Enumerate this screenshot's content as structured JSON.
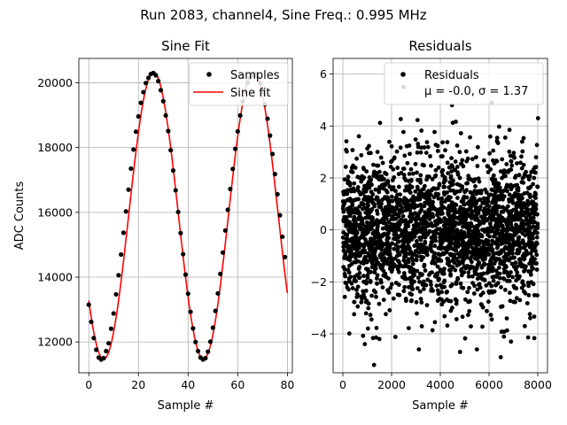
{
  "figure": {
    "suptitle": "Run 2083, channel4, Sine Freq.: 0.995 MHz"
  },
  "chart_data": [
    {
      "type": "scatter",
      "title": "Sine Fit",
      "xlabel": "Sample #",
      "ylabel": "ADC Counts",
      "xlim": [
        -4,
        82
      ],
      "ylim": [
        11050,
        20750
      ],
      "xticks": [
        0,
        20,
        40,
        60,
        80
      ],
      "yticks": [
        12000,
        14000,
        16000,
        18000,
        20000
      ],
      "grid": true,
      "legend_placement": "upper-right",
      "fit": {
        "offset": 15900,
        "amplitude": 4430,
        "period_samples": 40.2,
        "peak_sample": 26.1
      },
      "series": [
        {
          "name": "Samples",
          "kind": "points",
          "color": "#000000",
          "x": [
            0,
            1,
            2,
            3,
            4,
            5,
            6,
            7,
            8,
            9,
            10,
            11,
            12,
            13,
            14,
            15,
            16,
            17,
            18,
            19,
            20,
            21,
            22,
            23,
            24,
            25,
            26,
            27,
            28,
            29,
            30,
            31,
            32,
            33,
            34,
            35,
            36,
            37,
            38,
            39,
            40,
            41,
            42,
            43,
            44,
            45,
            46,
            47,
            48,
            49,
            50,
            51,
            52,
            53,
            54,
            55,
            56,
            57,
            58,
            59,
            60,
            61,
            62,
            63,
            64,
            65,
            66,
            67,
            68,
            69,
            70,
            71,
            72,
            73,
            74,
            75,
            76,
            77,
            78,
            79
          ],
          "y": [
            13150,
            12620,
            12120,
            11760,
            11520,
            11460,
            11500,
            11720,
            11960,
            12410,
            12880,
            13470,
            14060,
            14700,
            15370,
            16030,
            16700,
            17350,
            17940,
            18490,
            18960,
            19380,
            19710,
            19990,
            20150,
            20270,
            20300,
            20230,
            20050,
            19770,
            19430,
            18990,
            18510,
            17920,
            17290,
            16680,
            16010,
            15360,
            14710,
            14080,
            13490,
            12930,
            12420,
            12000,
            11720,
            11520,
            11460,
            11500,
            11700,
            12010,
            12440,
            12960,
            13500,
            14100,
            14760,
            15440,
            16080,
            16720,
            17340,
            17960,
            18500,
            18990,
            19420,
            19720,
            20000,
            20160,
            20250,
            20270,
            20200,
            19980,
            19700,
            19330,
            18890,
            18370,
            17800,
            17180,
            16560,
            15910,
            15250,
            14620
          ]
        },
        {
          "name": "Sine fit",
          "kind": "line",
          "color": "#ff0000"
        }
      ]
    },
    {
      "type": "scatter",
      "title": "Residuals",
      "xlabel": "Sample #",
      "ylabel": "",
      "xlim": [
        -400,
        8400
      ],
      "ylim": [
        -5.5,
        6.6
      ],
      "xticks": [
        0,
        2000,
        4000,
        6000,
        8000
      ],
      "yticks": [
        -4,
        -2,
        0,
        2,
        4,
        6
      ],
      "grid": true,
      "legend_placement": "upper-right",
      "series": [
        {
          "name": "Residuals",
          "color": "#000000",
          "n_points": 8000,
          "mean": -0.0,
          "sigma": 1.37,
          "outliers": [
            [
              1280,
              -5.2
            ],
            [
              2490,
              5.5
            ],
            [
              3120,
              -4.6
            ],
            [
              4480,
              4.8
            ],
            [
              4810,
              -4.7
            ],
            [
              6110,
              4.9
            ],
            [
              6480,
              -4.9
            ],
            [
              6900,
              -4.3
            ],
            [
              8010,
              4.3
            ],
            [
              900,
              -4.4
            ],
            [
              1500,
              -4.2
            ],
            [
              5500,
              -4.6
            ]
          ]
        }
      ],
      "legend_text": {
        "line1": "Residuals",
        "line2": "μ = -0.0, σ = 1.37"
      }
    }
  ]
}
